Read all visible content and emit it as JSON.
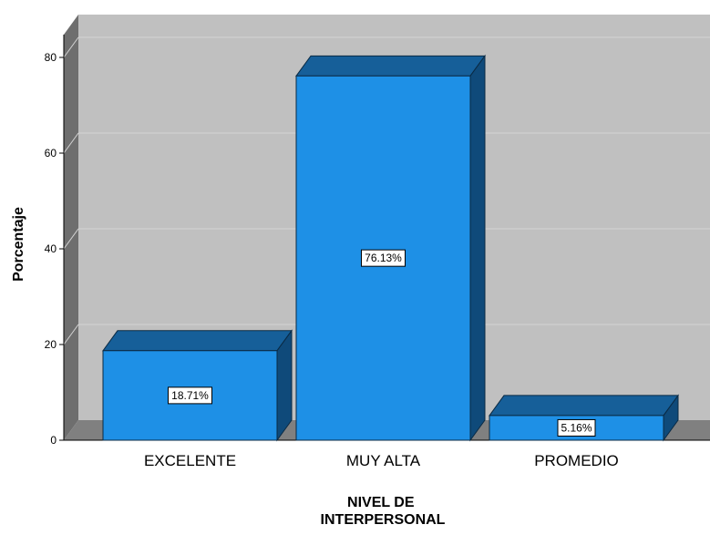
{
  "chart_data": {
    "type": "bar",
    "style": "3d",
    "categories": [
      "EXCELENTE",
      "MUY ALTA",
      "PROMEDIO"
    ],
    "values": [
      18.71,
      76.13,
      5.16
    ],
    "data_labels": [
      "18.71%",
      "76.13%",
      "5.16%"
    ],
    "xlabel_lines": [
      "NIVEL DE",
      "INTERPERSONAL"
    ],
    "ylabel": "Porcentaje",
    "ylim": [
      0,
      80
    ],
    "yticks": [
      0,
      20,
      40,
      60,
      80
    ],
    "grid": true,
    "colors": {
      "bar_front": "#1e90e6",
      "bar_top": "#165f99",
      "bar_side": "#0f4a7a",
      "back_wall": "#c0c0c0",
      "side_wall": "#6e6e6e",
      "floor": "#808080",
      "gridline": "#d4d4d4"
    }
  }
}
